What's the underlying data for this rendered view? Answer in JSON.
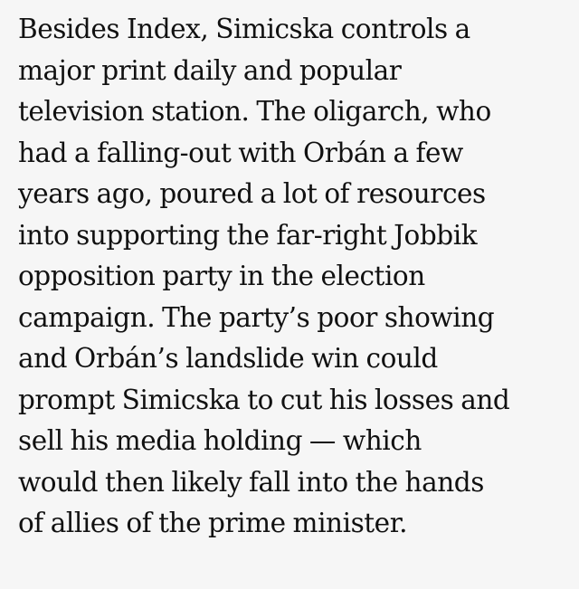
{
  "article": {
    "lines": [
      "Besides Index, Simicska controls a",
      "major print daily and popular",
      "television station. The oligarch, who",
      "had a falling-out with Orbán a few",
      "years ago, poured a lot of resources",
      "into supporting the far-right Jobbik",
      "opposition party in the election",
      "campaign. The party’s poor showing",
      "and Orbán’s landslide win could",
      "prompt Simicska to cut his losses and",
      "sell his media holding — which",
      "would then likely fall into the hands",
      "of allies of the prime minister."
    ]
  }
}
